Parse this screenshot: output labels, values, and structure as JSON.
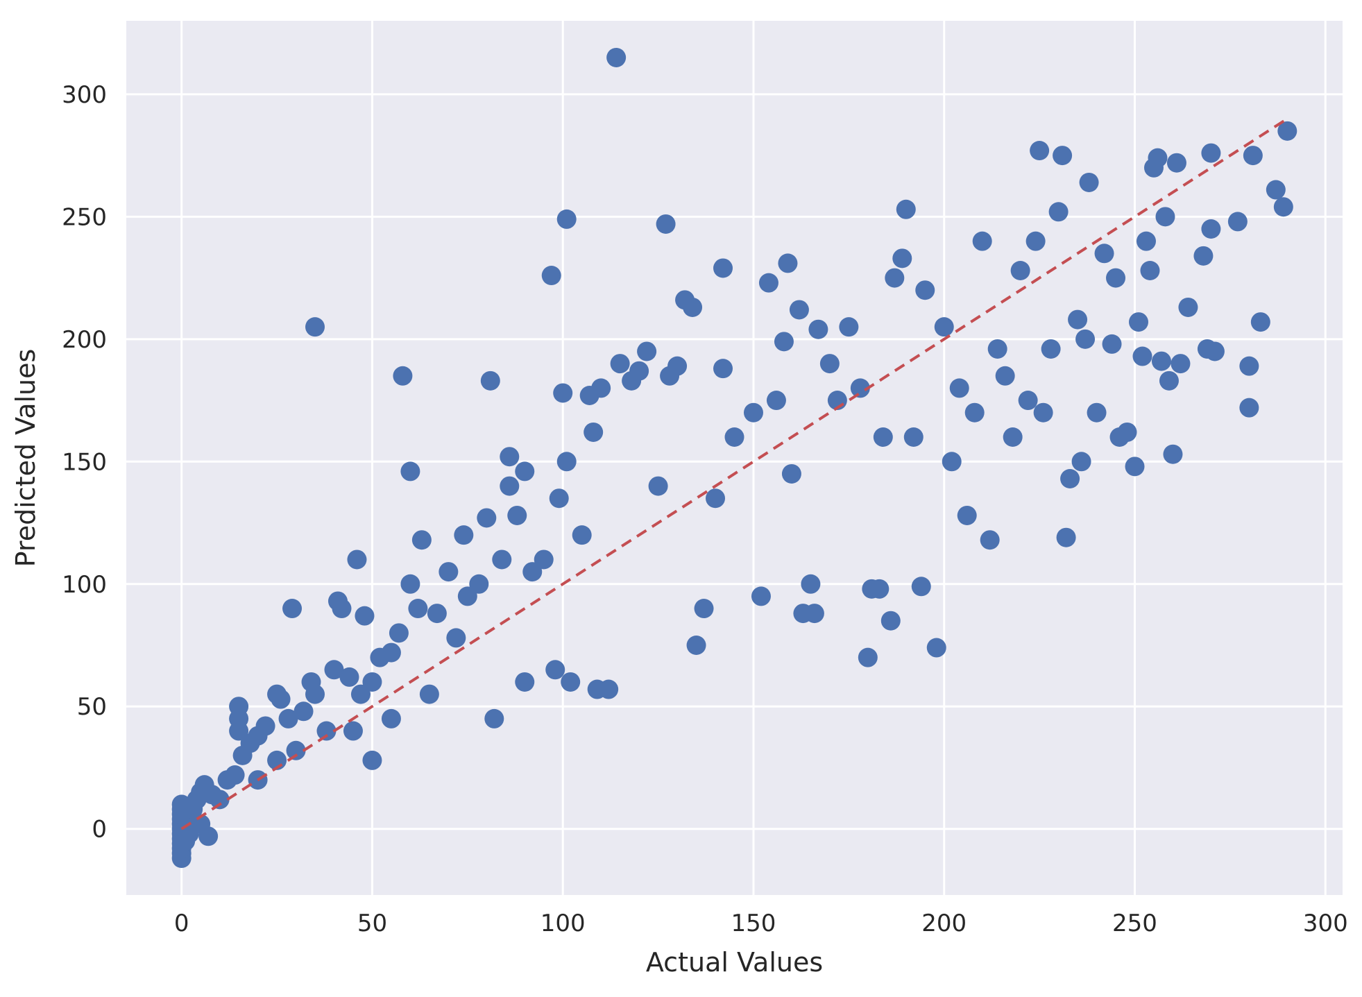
{
  "chart_data": {
    "type": "scatter",
    "title": "",
    "xlabel": "Actual Values",
    "ylabel": "Predicted Values",
    "xlim": [
      -14.5,
      304.5
    ],
    "ylim": [
      -27,
      330
    ],
    "xticks": [
      0,
      50,
      100,
      150,
      200,
      250,
      300
    ],
    "yticks": [
      0,
      50,
      100,
      150,
      200,
      250,
      300
    ],
    "x_tick_labels": [
      "0",
      "50",
      "100",
      "150",
      "200",
      "250",
      "300"
    ],
    "y_tick_labels": [
      "0",
      "50",
      "100",
      "150",
      "200",
      "250",
      "300"
    ],
    "grid": true,
    "background": "#EAEAF2",
    "grid_color": "#FFFFFF",
    "marker_color": "#4C72B0",
    "reference_line": {
      "x": [
        0,
        290
      ],
      "y": [
        0,
        290
      ],
      "color": "#C44E52",
      "style": "dashed"
    },
    "series": [
      {
        "points": [
          [
            0,
            -12
          ],
          [
            0,
            -10
          ],
          [
            0,
            -8
          ],
          [
            0,
            -6
          ],
          [
            0,
            -4
          ],
          [
            0,
            -2
          ],
          [
            0,
            0
          ],
          [
            0,
            2
          ],
          [
            0,
            4
          ],
          [
            0,
            6
          ],
          [
            0,
            8
          ],
          [
            0,
            10
          ],
          [
            1,
            -5
          ],
          [
            1,
            0
          ],
          [
            1,
            5
          ],
          [
            2,
            3
          ],
          [
            2,
            -2
          ],
          [
            3,
            8
          ],
          [
            4,
            12
          ],
          [
            5,
            15
          ],
          [
            5,
            2
          ],
          [
            6,
            18
          ],
          [
            7,
            -3
          ],
          [
            8,
            14
          ],
          [
            10,
            12
          ],
          [
            12,
            20
          ],
          [
            14,
            22
          ],
          [
            15,
            40
          ],
          [
            15,
            45
          ],
          [
            15,
            50
          ],
          [
            16,
            30
          ],
          [
            18,
            35
          ],
          [
            20,
            20
          ],
          [
            20,
            38
          ],
          [
            22,
            42
          ],
          [
            25,
            28
          ],
          [
            25,
            55
          ],
          [
            26,
            53
          ],
          [
            28,
            45
          ],
          [
            29,
            90
          ],
          [
            30,
            32
          ],
          [
            32,
            48
          ],
          [
            34,
            60
          ],
          [
            35,
            55
          ],
          [
            35,
            205
          ],
          [
            38,
            40
          ],
          [
            40,
            65
          ],
          [
            41,
            93
          ],
          [
            42,
            90
          ],
          [
            44,
            62
          ],
          [
            45,
            40
          ],
          [
            46,
            110
          ],
          [
            47,
            55
          ],
          [
            48,
            87
          ],
          [
            50,
            28
          ],
          [
            50,
            60
          ],
          [
            52,
            70
          ],
          [
            55,
            72
          ],
          [
            55,
            45
          ],
          [
            57,
            80
          ],
          [
            58,
            185
          ],
          [
            60,
            146
          ],
          [
            60,
            100
          ],
          [
            62,
            90
          ],
          [
            63,
            118
          ],
          [
            65,
            55
          ],
          [
            67,
            88
          ],
          [
            70,
            105
          ],
          [
            72,
            78
          ],
          [
            74,
            120
          ],
          [
            75,
            95
          ],
          [
            78,
            100
          ],
          [
            80,
            127
          ],
          [
            81,
            183
          ],
          [
            82,
            45
          ],
          [
            84,
            110
          ],
          [
            86,
            152
          ],
          [
            86,
            140
          ],
          [
            88,
            128
          ],
          [
            90,
            146
          ],
          [
            90,
            60
          ],
          [
            92,
            105
          ],
          [
            95,
            110
          ],
          [
            97,
            226
          ],
          [
            98,
            65
          ],
          [
            99,
            135
          ],
          [
            100,
            178
          ],
          [
            101,
            150
          ],
          [
            101,
            249
          ],
          [
            102,
            60
          ],
          [
            105,
            120
          ],
          [
            107,
            177
          ],
          [
            108,
            162
          ],
          [
            109,
            57
          ],
          [
            110,
            180
          ],
          [
            112,
            57
          ],
          [
            114,
            315
          ],
          [
            115,
            190
          ],
          [
            118,
            183
          ],
          [
            120,
            187
          ],
          [
            122,
            195
          ],
          [
            125,
            140
          ],
          [
            127,
            247
          ],
          [
            128,
            185
          ],
          [
            130,
            189
          ],
          [
            132,
            216
          ],
          [
            134,
            213
          ],
          [
            135,
            75
          ],
          [
            137,
            90
          ],
          [
            140,
            135
          ],
          [
            142,
            188
          ],
          [
            142,
            229
          ],
          [
            145,
            160
          ],
          [
            150,
            170
          ],
          [
            152,
            95
          ],
          [
            154,
            223
          ],
          [
            156,
            175
          ],
          [
            158,
            199
          ],
          [
            159,
            231
          ],
          [
            160,
            145
          ],
          [
            162,
            212
          ],
          [
            163,
            88
          ],
          [
            165,
            100
          ],
          [
            166,
            88
          ],
          [
            167,
            204
          ],
          [
            170,
            190
          ],
          [
            172,
            175
          ],
          [
            175,
            205
          ],
          [
            178,
            180
          ],
          [
            180,
            70
          ],
          [
            181,
            98
          ],
          [
            183,
            98
          ],
          [
            184,
            160
          ],
          [
            186,
            85
          ],
          [
            187,
            225
          ],
          [
            189,
            233
          ],
          [
            190,
            253
          ],
          [
            192,
            160
          ],
          [
            194,
            99
          ],
          [
            195,
            220
          ],
          [
            198,
            74
          ],
          [
            200,
            205
          ],
          [
            202,
            150
          ],
          [
            204,
            180
          ],
          [
            206,
            128
          ],
          [
            208,
            170
          ],
          [
            210,
            240
          ],
          [
            212,
            118
          ],
          [
            214,
            196
          ],
          [
            216,
            185
          ],
          [
            218,
            160
          ],
          [
            220,
            228
          ],
          [
            222,
            175
          ],
          [
            224,
            240
          ],
          [
            225,
            277
          ],
          [
            226,
            170
          ],
          [
            228,
            196
          ],
          [
            230,
            252
          ],
          [
            231,
            275
          ],
          [
            232,
            119
          ],
          [
            233,
            143
          ],
          [
            235,
            208
          ],
          [
            236,
            150
          ],
          [
            237,
            200
          ],
          [
            238,
            264
          ],
          [
            240,
            170
          ],
          [
            242,
            235
          ],
          [
            244,
            198
          ],
          [
            245,
            225
          ],
          [
            246,
            160
          ],
          [
            248,
            162
          ],
          [
            250,
            148
          ],
          [
            251,
            207
          ],
          [
            252,
            193
          ],
          [
            253,
            240
          ],
          [
            254,
            228
          ],
          [
            255,
            270
          ],
          [
            256,
            274
          ],
          [
            257,
            191
          ],
          [
            258,
            250
          ],
          [
            259,
            183
          ],
          [
            260,
            153
          ],
          [
            261,
            272
          ],
          [
            262,
            190
          ],
          [
            264,
            213
          ],
          [
            268,
            234
          ],
          [
            269,
            196
          ],
          [
            270,
            245
          ],
          [
            270,
            276
          ],
          [
            271,
            195
          ],
          [
            277,
            248
          ],
          [
            280,
            189
          ],
          [
            280,
            172
          ],
          [
            281,
            275
          ],
          [
            283,
            207
          ],
          [
            287,
            261
          ],
          [
            289,
            254
          ],
          [
            290,
            285
          ]
        ]
      }
    ]
  }
}
